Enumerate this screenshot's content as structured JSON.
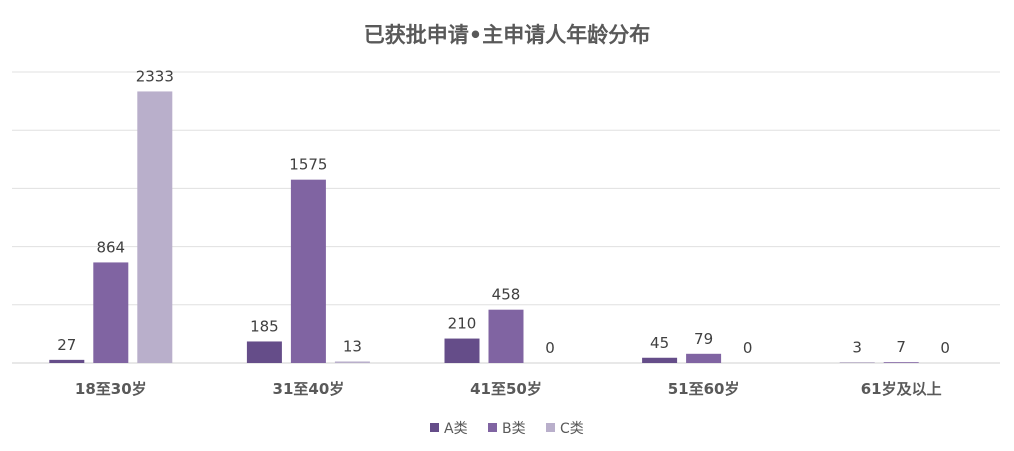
{
  "chart_data": {
    "type": "bar",
    "title": "已获批申请•主申请人年龄分布",
    "categories": [
      "18至30岁",
      "31至40岁",
      "41至50岁",
      "51至60岁",
      "61岁及以上"
    ],
    "series": [
      {
        "name": "A类",
        "values": [
          27,
          185,
          210,
          45,
          3
        ],
        "color": "#654d89"
      },
      {
        "name": "B类",
        "values": [
          864,
          1575,
          458,
          79,
          7
        ],
        "color": "#8064a2"
      },
      {
        "name": "C类",
        "values": [
          2333,
          13,
          0,
          0,
          0
        ],
        "color": "#b9afcb"
      }
    ],
    "xlabel": "",
    "ylabel": "",
    "ylim": [
      0,
      2500
    ],
    "grid": true,
    "y_axis_labels_shown": false,
    "data_labels": true,
    "legend_position": "bottom"
  }
}
